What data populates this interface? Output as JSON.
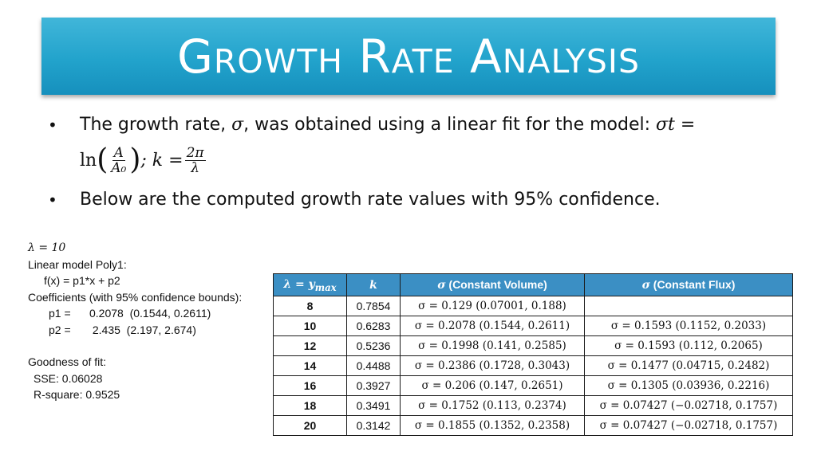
{
  "slide": {
    "title": "Growth Rate Analysis"
  },
  "bullets": {
    "b1_text": "The growth rate, ",
    "b1_sigma": "σ",
    "b1_text2": ", was obtained using a linear fit for the model: ",
    "b1_model": "σt =",
    "b1_ln": "ln",
    "b1_frac_num": "A",
    "b1_frac_den": "A₀",
    "b1_sep": "; k =",
    "b1_k_num": "2π",
    "b1_k_den": "λ",
    "b2_text": "Below are the computed growth rate values with 95% confidence.",
    "bullet_glyph": "•"
  },
  "fit_output": {
    "lambda_line": "λ = 10",
    "model_line": "Linear model Poly1:",
    "formula_line": "f(x) = p1*x + p2",
    "coef_line": "Coefficients (with 95% confidence bounds):",
    "p1_line": "p1 =      0.2078  (0.1544, 0.2611)",
    "p2_line": "p2 =       2.435  (2.197, 2.674)",
    "gof_line": "Goodness of fit:",
    "sse_line": "SSE: 0.06028",
    "rsq_line": "R-square: 0.9525"
  },
  "table": {
    "headers": {
      "col1": "λ = y",
      "col1_sub": "max",
      "col2": "k",
      "col3_sym": "σ",
      "col3": " (Constant Volume)",
      "col4_sym": "σ",
      "col4": " (Constant Flux)"
    },
    "rows": [
      {
        "lambda": "8",
        "k": "0.7854",
        "cv": "σ = 0.129 (0.07001, 0.188)",
        "cf": ""
      },
      {
        "lambda": "10",
        "k": "0.6283",
        "cv": "σ = 0.2078 (0.1544, 0.2611)",
        "cf": "σ = 0.1593  (0.1152, 0.2033)"
      },
      {
        "lambda": "12",
        "k": "0.5236",
        "cv": "σ = 0.1998  (0.141, 0.2585)",
        "cf": "σ = 0.1593  (0.112, 0.2065)"
      },
      {
        "lambda": "14",
        "k": "0.4488",
        "cv": "σ = 0.2386 (0.1728, 0.3043)",
        "cf": "σ = 0.1477  (0.04715, 0.2482)"
      },
      {
        "lambda": "16",
        "k": "0.3927",
        "cv": "σ = 0.206  (0.147, 0.2651)",
        "cf": "σ = 0.1305  (0.03936, 0.2216)"
      },
      {
        "lambda": "18",
        "k": "0.3491",
        "cv": "σ = 0.1752  (0.113, 0.2374)",
        "cf": "σ = 0.07427  (−0.02718, 0.1757)"
      },
      {
        "lambda": "20",
        "k": "0.3142",
        "cv": "σ = 0.1855  (0.1352, 0.2358)",
        "cf": "σ = 0.07427  (−0.02718, 0.1757)"
      }
    ]
  },
  "colors": {
    "banner": "#22a3cc",
    "table_header": "#3b8fc4"
  }
}
